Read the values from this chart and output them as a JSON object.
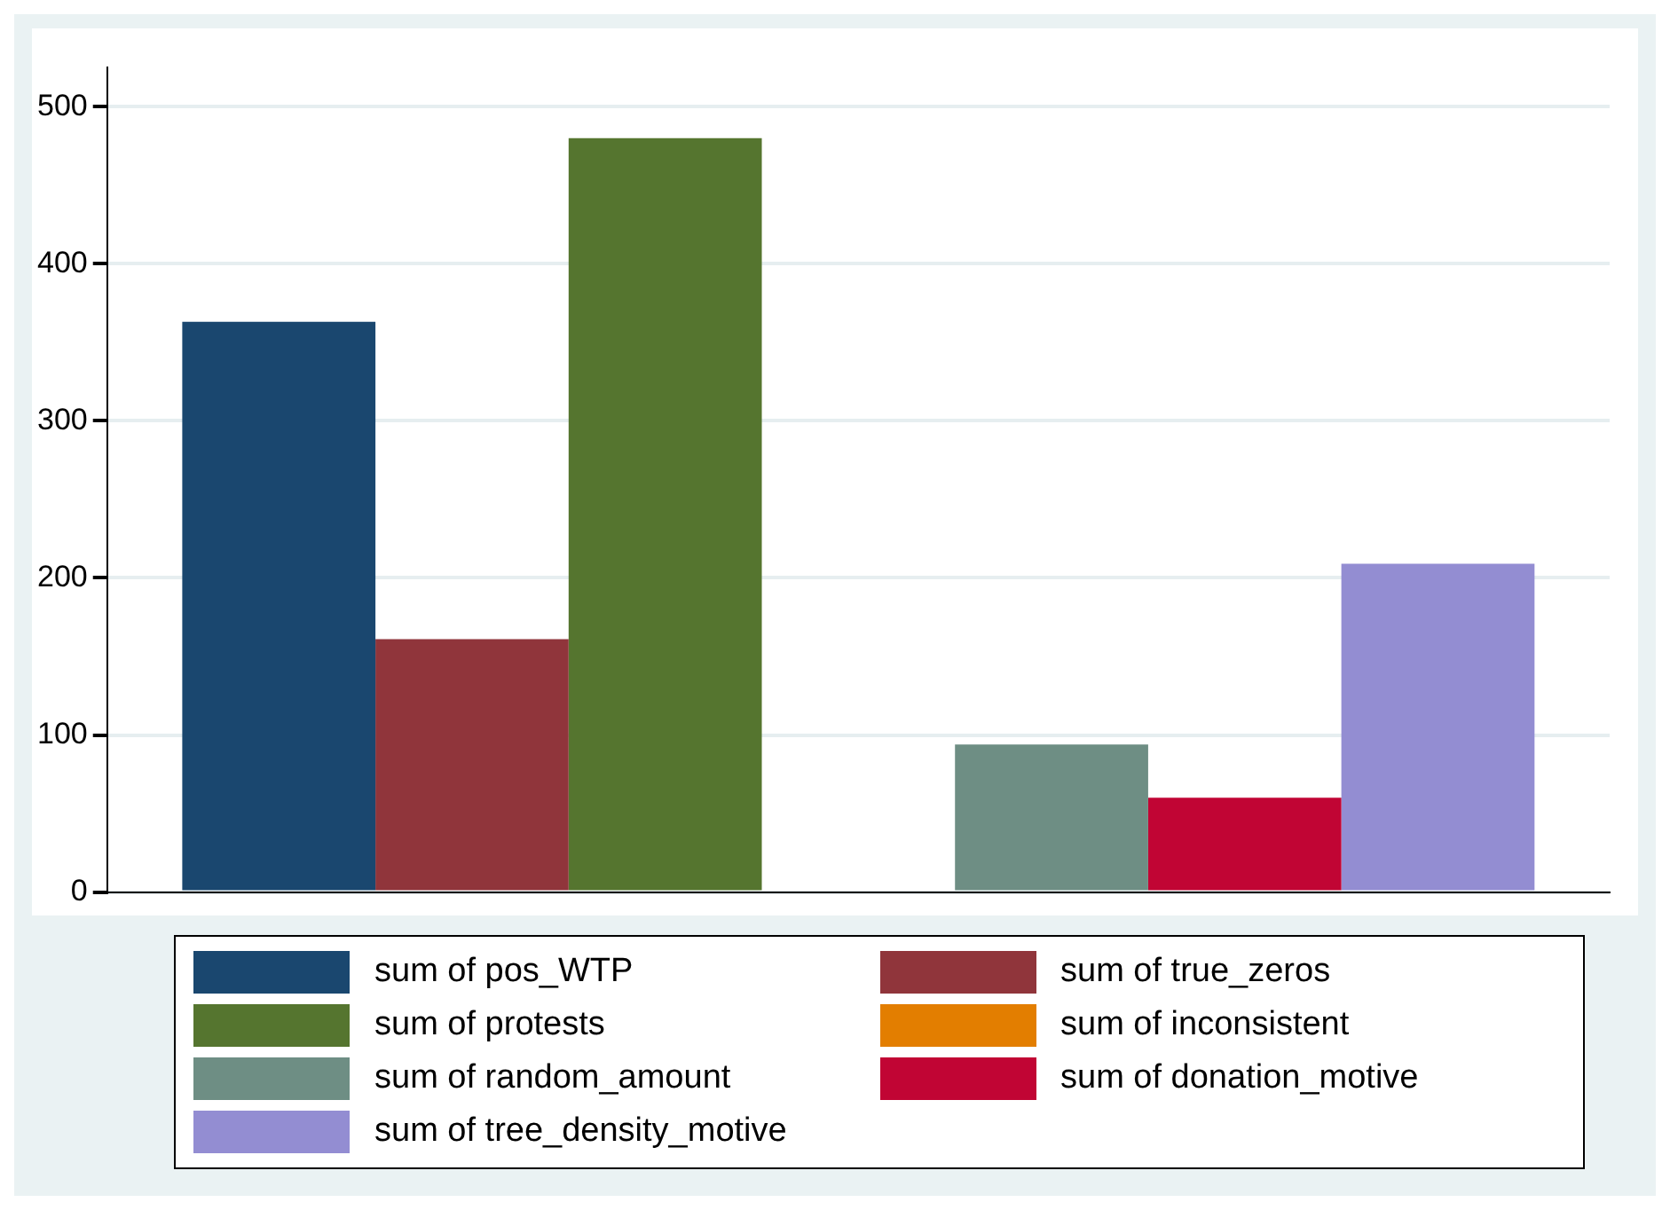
{
  "chart_data": {
    "type": "bar",
    "categories": [
      null
    ],
    "series": [
      {
        "name": "sum of pos_WTP",
        "color": "#1a476f",
        "values": [
          363
        ]
      },
      {
        "name": "sum of true_zeros",
        "color": "#90353b",
        "values": [
          161
        ]
      },
      {
        "name": "sum of protests",
        "color": "#55752f",
        "values": [
          480
        ]
      },
      {
        "name": "sum of inconsistent",
        "color": "#e37e00",
        "values": [
          0
        ]
      },
      {
        "name": "sum of random_amount",
        "color": "#6e8e84",
        "values": [
          94
        ]
      },
      {
        "name": "sum of donation_motive",
        "color": "#c10534",
        "values": [
          60
        ]
      },
      {
        "name": "sum of tree_density_motive",
        "color": "#938dd2",
        "values": [
          209
        ]
      }
    ],
    "ylim": [
      0,
      525
    ],
    "yticks": [
      0,
      100,
      200,
      300,
      400,
      500
    ],
    "grid": "y",
    "legend": "bottom"
  }
}
